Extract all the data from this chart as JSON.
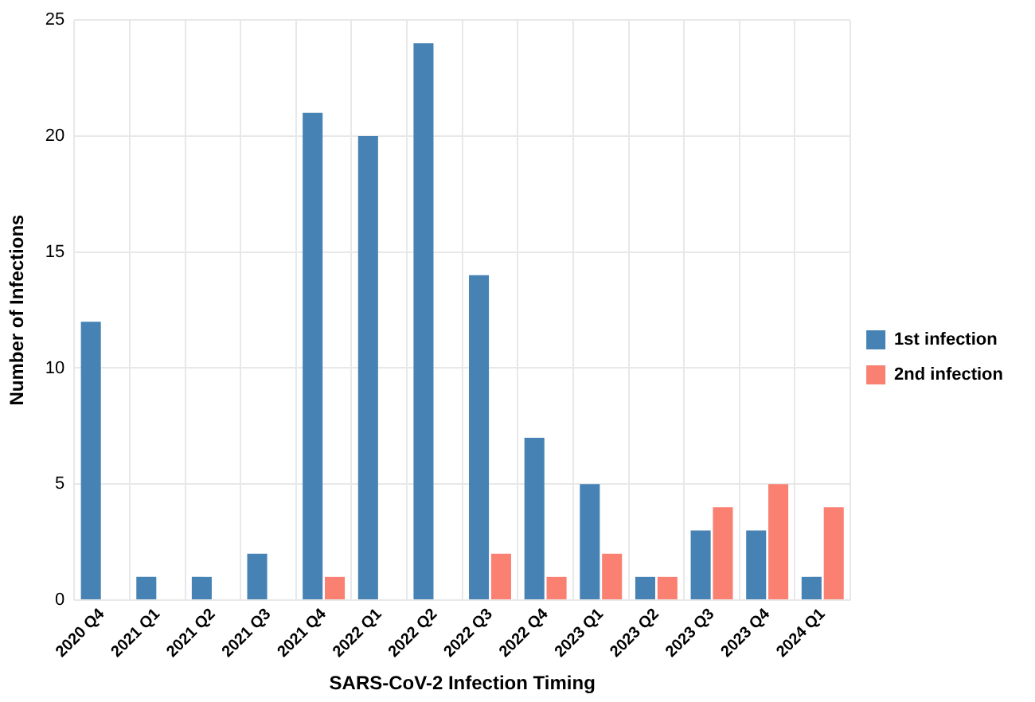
{
  "chart_data": {
    "type": "bar",
    "xlabel": "SARS-CoV-2 Infection Timing",
    "ylabel": "Number of Infections",
    "categories": [
      "2020 Q4",
      "2021 Q1",
      "2021 Q2",
      "2021 Q3",
      "2021 Q4",
      "2022 Q1",
      "2022 Q2",
      "2022 Q3",
      "2022 Q4",
      "2023 Q1",
      "2023 Q2",
      "2023 Q3",
      "2023 Q4",
      "2024 Q1"
    ],
    "series": [
      {
        "name": "1st infection",
        "color": "#4682b4",
        "values": [
          12,
          1,
          1,
          2,
          21,
          20,
          24,
          14,
          7,
          5,
          1,
          3,
          3,
          1
        ]
      },
      {
        "name": "2nd infection",
        "color": "#fa8072",
        "values": [
          0,
          0,
          0,
          0,
          1,
          0,
          0,
          2,
          1,
          2,
          1,
          4,
          5,
          4
        ]
      }
    ],
    "ylim": [
      0,
      25
    ],
    "yticks": [
      0,
      5,
      10,
      15,
      20,
      25
    ],
    "grid": true,
    "legend": "right"
  }
}
